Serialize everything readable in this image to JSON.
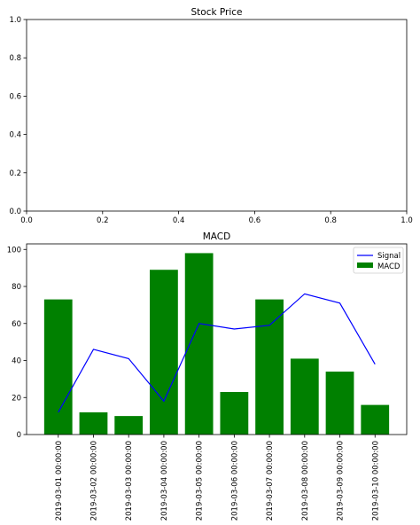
{
  "chart_data": [
    {
      "type": "line",
      "title": "Stock Price",
      "xlim": [
        0.0,
        1.0
      ],
      "ylim": [
        0.0,
        1.0
      ],
      "x_ticks": [
        "0.0",
        "0.2",
        "0.4",
        "0.6",
        "0.8",
        "1.0"
      ],
      "y_ticks": [
        "0.0",
        "0.2",
        "0.4",
        "0.6",
        "0.8",
        "1.0"
      ],
      "series": [],
      "grid": false
    },
    {
      "type": "bar",
      "title": "MACD",
      "categories": [
        "2019-03-01 00:00:00",
        "2019-03-02 00:00:00",
        "2019-03-03 00:00:00",
        "2019-03-04 00:00:00",
        "2019-03-05 00:00:00",
        "2019-03-06 00:00:00",
        "2019-03-07 00:00:00",
        "2019-03-08 00:00:00",
        "2019-03-09 00:00:00",
        "2019-03-10 00:00:00"
      ],
      "ylim": [
        0,
        103
      ],
      "y_ticks": [
        0,
        20,
        40,
        60,
        80,
        100
      ],
      "series": [
        {
          "name": "MACD",
          "type": "bar",
          "color": "#008000",
          "values": [
            73,
            12,
            10,
            89,
            98,
            23,
            73,
            41,
            34,
            16
          ]
        },
        {
          "name": "Signal",
          "type": "line",
          "color": "#0000ff",
          "values": [
            12,
            46,
            41,
            18,
            60,
            57,
            59,
            76,
            71,
            38
          ]
        }
      ],
      "legend_position": "top-right",
      "grid": false
    }
  ]
}
